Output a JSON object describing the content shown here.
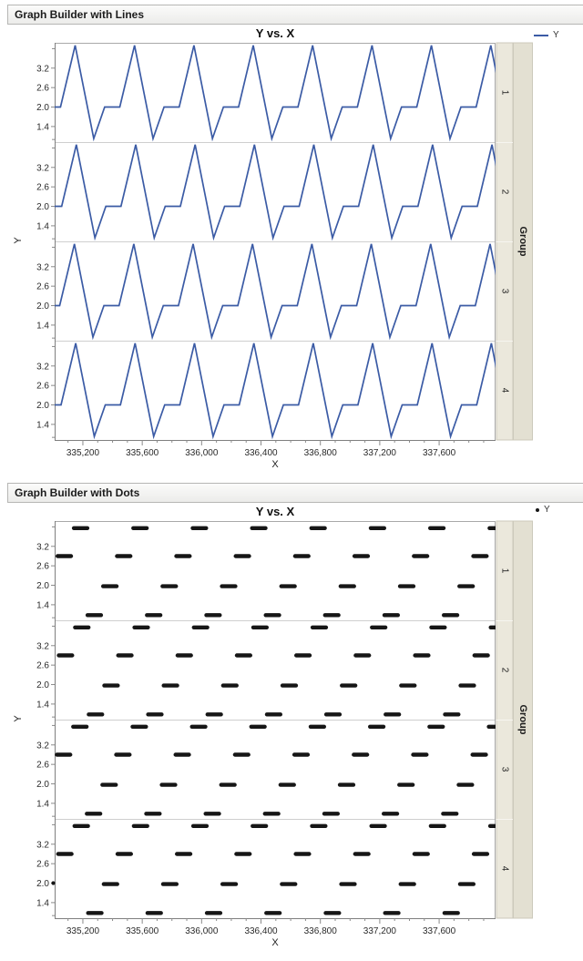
{
  "windows": [
    {
      "title": "Graph Builder with Lines",
      "plot_title": "Y vs. X",
      "legend": {
        "label": "Y",
        "marker": "line"
      },
      "x_axis_label": "X",
      "y_axis_label": "Y",
      "group_label": "Group",
      "group_levels": [
        "1",
        "2",
        "3",
        "4"
      ]
    },
    {
      "title": "Graph Builder with Dots",
      "plot_title": "Y vs. X",
      "legend": {
        "label": "Y",
        "marker": "dot"
      },
      "x_axis_label": "X",
      "y_axis_label": "Y",
      "group_label": "Group",
      "group_levels": [
        "1",
        "2",
        "3",
        "4"
      ]
    }
  ],
  "axis": {
    "x": {
      "min": 335010,
      "max": 337980,
      "major_tick_values": [
        335200,
        335600,
        336000,
        336400,
        336800,
        337200,
        337600
      ],
      "major_tick_labels": [
        "335,200",
        "335,600",
        "336,000",
        "336,400",
        "336,800",
        "337,200",
        "337,600"
      ],
      "minor_tick_step": 100
    },
    "y": {
      "min": 0.92,
      "max": 3.98,
      "tick_values": [
        3.2,
        2.6,
        2.0,
        1.4
      ],
      "tick_labels": [
        "3.2",
        "2.6",
        "2.0",
        "1.4"
      ],
      "minor_tick_values": [
        3.8,
        1.0
      ]
    }
  },
  "chart_data": [
    {
      "type": "line",
      "title": "Y vs. X",
      "series": [
        {
          "name": "Y"
        }
      ],
      "facet_label": "Group",
      "facets": [
        "1",
        "2",
        "3",
        "4"
      ],
      "x_range": [
        335010,
        337980
      ],
      "y_range": [
        0.92,
        3.98
      ],
      "color": "#3b5ba5",
      "waveform": {
        "description": "repeating spike wave per 400 x-units: flat at 2.0, spike up to 3.9, drop to 1.03, return to 2.0 plateau",
        "period": 400,
        "first_peak_x": 335148,
        "breakpoints_rel_to_peak": [
          [
            0,
            3.9
          ],
          [
            125,
            1.03
          ],
          [
            199,
            2.0
          ],
          [
            301,
            2.0
          ]
        ],
        "facet_phase_offsets": [
          0,
          8,
          -5,
          4
        ]
      }
    },
    {
      "type": "scatter",
      "title": "Y vs. X",
      "series": [
        {
          "name": "Y"
        }
      ],
      "facet_label": "Group",
      "facets": [
        "1",
        "2",
        "3",
        "4"
      ],
      "x_range": [
        335010,
        337980
      ],
      "y_range": [
        0.92,
        3.98
      ],
      "color": "#161616",
      "runs": {
        "description": "horizontal clusters of dots repeating every 400 x-units at four y-levels",
        "period": 400,
        "first_cycle_x": 335075,
        "per_cycle": [
          {
            "y": 2.9,
            "dx": 0
          },
          {
            "y": 3.76,
            "dx": 110
          },
          {
            "y": 1.08,
            "dx": 202
          },
          {
            "y": 1.97,
            "dx": 307
          }
        ],
        "run_width": 118,
        "facet_phase_offsets": [
          0,
          8,
          -5,
          4
        ]
      },
      "extra_points": [
        {
          "facet": "4",
          "x": 335010,
          "y": 2.0
        }
      ]
    }
  ],
  "colors": {
    "line_series": "#3b5ba5",
    "dot_series": "#161616",
    "titlebar_bg": "#f2f2f0",
    "titlebar_border": "#b6b6b4",
    "strip_levels_bg": "#ebe8dc",
    "strip_group_bg": "#e3e0d2",
    "strip_border": "#ccc9bb",
    "panel_divider": "#cfcfcf",
    "frame": "#a9a9a9",
    "axis_line": "#7f7f7f",
    "tick": "#8a8a8a",
    "tick_label": "#2a2a2a"
  }
}
